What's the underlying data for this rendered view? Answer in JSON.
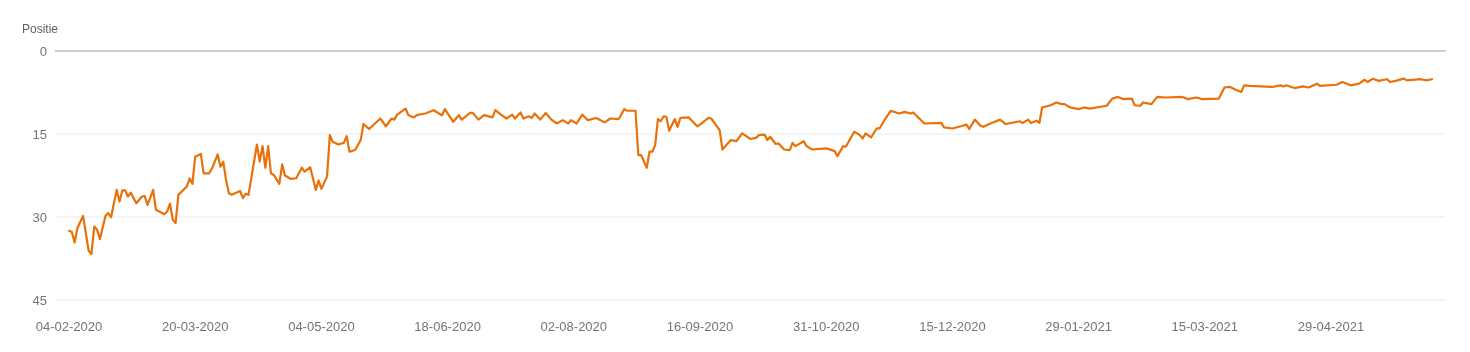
{
  "chart_data": {
    "type": "line",
    "ylabel": "Positie",
    "xlim": [
      "2020-01-30",
      "2021-06-09"
    ],
    "ylim": [
      45,
      0
    ],
    "yticks": [
      0,
      15,
      30,
      45
    ],
    "xticks": [
      {
        "value": "2020-02-04",
        "label": "04-02-2020"
      },
      {
        "value": "2020-03-20",
        "label": "20-03-2020"
      },
      {
        "value": "2020-05-04",
        "label": "04-05-2020"
      },
      {
        "value": "2020-06-18",
        "label": "18-06-2020"
      },
      {
        "value": "2020-08-02",
        "label": "02-08-2020"
      },
      {
        "value": "2020-09-16",
        "label": "16-09-2020"
      },
      {
        "value": "2020-10-31",
        "label": "31-10-2020"
      },
      {
        "value": "2020-12-15",
        "label": "15-12-2020"
      },
      {
        "value": "2021-01-29",
        "label": "29-01-2021"
      },
      {
        "value": "2021-03-15",
        "label": "15-03-2021"
      },
      {
        "value": "2021-04-29",
        "label": "29-04-2021"
      }
    ],
    "grid": "y",
    "marker": "none",
    "line_style": "solid",
    "series": [
      {
        "color": "#e8710a",
        "x": [
          "2020-02-04",
          "2020-02-05",
          "2020-02-06",
          "2020-02-07",
          "2020-02-09",
          "2020-02-11",
          "2020-02-12",
          "2020-02-13",
          "2020-02-14",
          "2020-02-15",
          "2020-02-17",
          "2020-02-18",
          "2020-02-19",
          "2020-02-21",
          "2020-02-22",
          "2020-02-23",
          "2020-02-24",
          "2020-02-25",
          "2020-02-26",
          "2020-02-28",
          "2020-03-01",
          "2020-03-02",
          "2020-03-03",
          "2020-03-05",
          "2020-03-06",
          "2020-03-09",
          "2020-03-10",
          "2020-03-11",
          "2020-03-12",
          "2020-03-13",
          "2020-03-14",
          "2020-03-17",
          "2020-03-18",
          "2020-03-19",
          "2020-03-20",
          "2020-03-22",
          "2020-03-23",
          "2020-03-25",
          "2020-03-26",
          "2020-03-28",
          "2020-03-29",
          "2020-03-30",
          "2020-03-31",
          "2020-04-01",
          "2020-04-02",
          "2020-04-05",
          "2020-04-06",
          "2020-04-07",
          "2020-04-08",
          "2020-04-11",
          "2020-04-12",
          "2020-04-13",
          "2020-04-14",
          "2020-04-15",
          "2020-04-16",
          "2020-04-17",
          "2020-04-19",
          "2020-04-20",
          "2020-04-21",
          "2020-04-23",
          "2020-04-25",
          "2020-04-27",
          "2020-04-28",
          "2020-04-30",
          "2020-05-02",
          "2020-05-03",
          "2020-05-04",
          "2020-05-06",
          "2020-05-07",
          "2020-05-08",
          "2020-05-10",
          "2020-05-12",
          "2020-05-13",
          "2020-05-14",
          "2020-05-16",
          "2020-05-18",
          "2020-05-19",
          "2020-05-21",
          "2020-05-25",
          "2020-05-27",
          "2020-05-29",
          "2020-05-30",
          "2020-05-31",
          "2020-06-03",
          "2020-06-04",
          "2020-06-06",
          "2020-06-07",
          "2020-06-10",
          "2020-06-13",
          "2020-06-16",
          "2020-06-17",
          "2020-06-20",
          "2020-06-22",
          "2020-06-23",
          "2020-06-26",
          "2020-06-27",
          "2020-06-29",
          "2020-07-01",
          "2020-07-04",
          "2020-07-05",
          "2020-07-07",
          "2020-07-09",
          "2020-07-11",
          "2020-07-12",
          "2020-07-14",
          "2020-07-15",
          "2020-07-17",
          "2020-07-18",
          "2020-07-19",
          "2020-07-21",
          "2020-07-23",
          "2020-07-25",
          "2020-07-27",
          "2020-07-29",
          "2020-07-31",
          "2020-08-01",
          "2020-08-03",
          "2020-08-05",
          "2020-08-07",
          "2020-08-10",
          "2020-08-13",
          "2020-08-15",
          "2020-08-18",
          "2020-08-20",
          "2020-08-21",
          "2020-08-24",
          "2020-08-25",
          "2020-08-26",
          "2020-08-28",
          "2020-08-29",
          "2020-08-30",
          "2020-08-31",
          "2020-09-01",
          "2020-09-02",
          "2020-09-03",
          "2020-09-04",
          "2020-09-05",
          "2020-09-07",
          "2020-09-08",
          "2020-09-09",
          "2020-09-12",
          "2020-09-15",
          "2020-09-16",
          "2020-09-19",
          "2020-09-20",
          "2020-09-23",
          "2020-09-24",
          "2020-09-27",
          "2020-09-29",
          "2020-10-01",
          "2020-10-04",
          "2020-10-06",
          "2020-10-07",
          "2020-10-09",
          "2020-10-10",
          "2020-10-11",
          "2020-10-13",
          "2020-10-14",
          "2020-10-16",
          "2020-10-18",
          "2020-10-19",
          "2020-10-20",
          "2020-10-23",
          "2020-10-24",
          "2020-10-26",
          "2020-10-31",
          "2020-11-03",
          "2020-11-04",
          "2020-11-06",
          "2020-11-07",
          "2020-11-10",
          "2020-11-12",
          "2020-11-13",
          "2020-11-14",
          "2020-11-16",
          "2020-11-18",
          "2020-11-19",
          "2020-11-21",
          "2020-11-23",
          "2020-11-26",
          "2020-11-28",
          "2020-11-30",
          "2020-12-01",
          "2020-12-05",
          "2020-12-11",
          "2020-12-12",
          "2020-12-15",
          "2020-12-18",
          "2020-12-20",
          "2020-12-21",
          "2020-12-23",
          "2020-12-25",
          "2020-12-26",
          "2020-12-29",
          "2021-01-01",
          "2021-01-03",
          "2021-01-08",
          "2021-01-09",
          "2021-01-11",
          "2021-01-12",
          "2021-01-14",
          "2021-01-15",
          "2021-01-16",
          "2021-01-19",
          "2021-01-21",
          "2021-01-23",
          "2021-01-24",
          "2021-01-26",
          "2021-01-29",
          "2021-01-31",
          "2021-02-02",
          "2021-02-08",
          "2021-02-10",
          "2021-02-12",
          "2021-02-14",
          "2021-02-17",
          "2021-02-18",
          "2021-02-20",
          "2021-02-21",
          "2021-02-24",
          "2021-02-26",
          "2021-03-01",
          "2021-03-07",
          "2021-03-09",
          "2021-03-12",
          "2021-03-14",
          "2021-03-20",
          "2021-03-22",
          "2021-03-24",
          "2021-03-26",
          "2021-03-28",
          "2021-03-29",
          "2021-03-31",
          "2021-04-04",
          "2021-04-08",
          "2021-04-11",
          "2021-04-12",
          "2021-04-13",
          "2021-04-16",
          "2021-04-19",
          "2021-04-21",
          "2021-04-24",
          "2021-04-25",
          "2021-05-01",
          "2021-05-03",
          "2021-05-06",
          "2021-05-09",
          "2021-05-11",
          "2021-05-12",
          "2021-05-14",
          "2021-05-16",
          "2021-05-19",
          "2021-05-20",
          "2021-05-22",
          "2021-05-25",
          "2021-05-26",
          "2021-05-31",
          "2021-06-02",
          "2021-06-04"
        ],
        "values": [
          32.5,
          32.7,
          34.6,
          32.0,
          29.8,
          36.1,
          36.7,
          31.7,
          32.3,
          34.0,
          29.8,
          29.3,
          30.0,
          25.1,
          27.2,
          25.2,
          25.2,
          26.3,
          25.6,
          27.5,
          26.3,
          26.2,
          27.8,
          25.1,
          28.7,
          29.5,
          29.0,
          27.6,
          30.5,
          31.1,
          26.0,
          24.5,
          23.0,
          24.0,
          19.1,
          18.6,
          22.1,
          22.1,
          21.2,
          18.7,
          20.9,
          20.0,
          23.3,
          25.7,
          26.0,
          25.3,
          26.6,
          25.8,
          26.0,
          16.9,
          20.0,
          17.2,
          21.1,
          17.2,
          22.1,
          22.4,
          24.0,
          20.5,
          22.5,
          23.1,
          23.0,
          21.1,
          21.8,
          21.0,
          25.1,
          23.4,
          24.9,
          22.7,
          15.2,
          16.4,
          16.9,
          16.6,
          15.4,
          18.2,
          17.9,
          16.1,
          13.2,
          14.1,
          12.2,
          13.6,
          12.2,
          12.4,
          11.5,
          10.4,
          11.6,
          12.0,
          11.6,
          11.3,
          10.7,
          11.6,
          10.5,
          12.8,
          11.6,
          12.4,
          11.2,
          11.2,
          12.4,
          11.6,
          12.0,
          10.7,
          11.5,
          12.2,
          11.5,
          12.2,
          11.1,
          12.2,
          11.8,
          12.1,
          11.3,
          12.4,
          11.2,
          12.4,
          13.1,
          12.5,
          13.1,
          12.5,
          13.1,
          11.5,
          12.5,
          12.1,
          12.9,
          12.2,
          12.3,
          10.5,
          10.8,
          10.8,
          18.8,
          18.8,
          21.1,
          18.2,
          18.2,
          17.0,
          12.3,
          12.7,
          11.8,
          11.9,
          14.4,
          12.3,
          13.7,
          12.1,
          12.0,
          13.6,
          13.3,
          12.1,
          12.2,
          14.3,
          17.8,
          16.1,
          16.3,
          14.9,
          15.9,
          15.7,
          15.2,
          15.1,
          16.1,
          15.5,
          16.8,
          16.7,
          17.8,
          17.9,
          16.6,
          17.2,
          16.3,
          17.2,
          17.8,
          17.6,
          18.1,
          19.0,
          17.2,
          17.3,
          14.6,
          15.2,
          15.8,
          14.9,
          15.6,
          14.0,
          14.0,
          12.3,
          10.8,
          11.3,
          11.0,
          11.3,
          11.1,
          13.1,
          13.0,
          13.8,
          14.0,
          13.6,
          13.3,
          14.1,
          12.4,
          13.5,
          13.7,
          13.0,
          12.4,
          13.2,
          12.7,
          13.0,
          12.4,
          13.0,
          12.6,
          13.0,
          10.2,
          9.8,
          9.3,
          9.6,
          9.6,
          10.2,
          10.5,
          10.2,
          10.4,
          9.9,
          8.6,
          8.3,
          8.7,
          8.6,
          9.8,
          9.9,
          9.3,
          9.6,
          8.3,
          8.4,
          8.3,
          8.7,
          8.4,
          8.7,
          8.6,
          6.6,
          6.5,
          7.0,
          7.4,
          6.2,
          6.3,
          6.4,
          6.5,
          6.2,
          6.4,
          6.2,
          6.7,
          6.4,
          6.6,
          5.9,
          6.3,
          6.1,
          5.6,
          6.2,
          5.9,
          5.2,
          5.6,
          5.0,
          5.4,
          5.1,
          5.6,
          5.4,
          5.0,
          5.3,
          5.1,
          5.3,
          5.1
        ]
      }
    ]
  }
}
